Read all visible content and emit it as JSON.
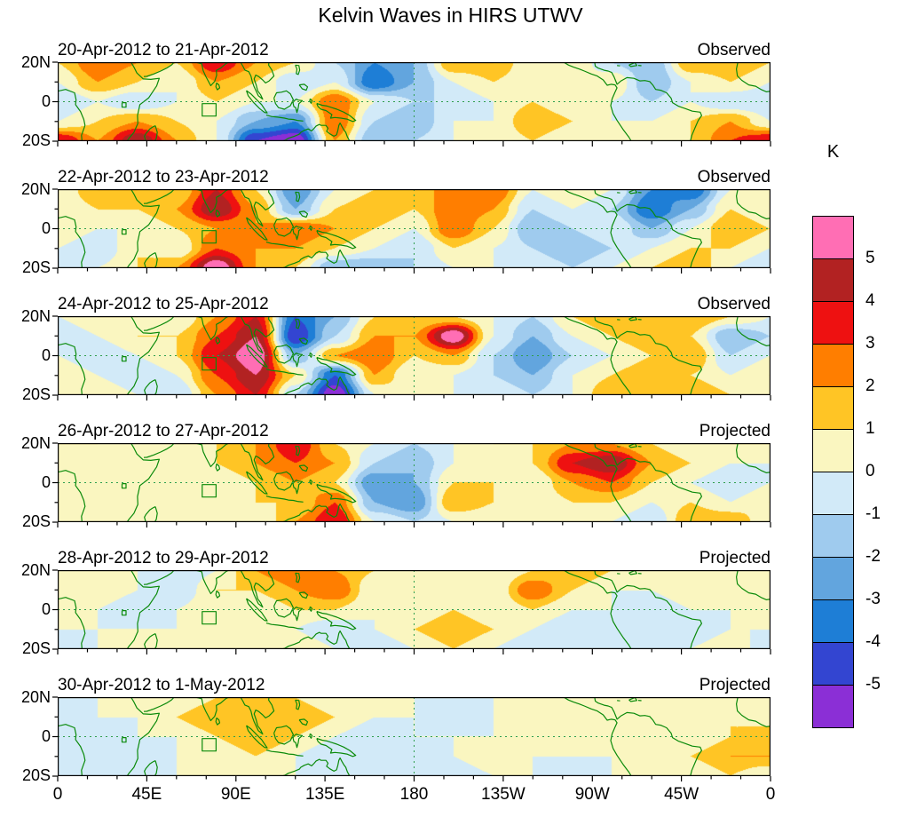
{
  "title": "Kelvin Waves in HIRS UTWV",
  "colorbar": {
    "unit_label": "K",
    "tick_labels": [
      "5",
      "4",
      "3",
      "2",
      "1",
      "0",
      "-1",
      "-2",
      "-3",
      "-4",
      "-5"
    ],
    "colors_low_to_high": [
      "#8B2FD6",
      "#3345D1",
      "#1E7ED6",
      "#62A5DE",
      "#9FCBEE",
      "#D2EAF8",
      "#FAF6C0",
      "#FFC525",
      "#FF7E00",
      "#EE1111",
      "#B22222",
      "#FF6EB4"
    ]
  },
  "axes": {
    "x_tick_labels": [
      "0",
      "45E",
      "90E",
      "135E",
      "180",
      "135W",
      "90W",
      "45W",
      "0"
    ],
    "x_tick_lons": [
      0,
      45,
      90,
      135,
      180,
      225,
      270,
      315,
      360
    ],
    "y_tick_labels": [
      "20N",
      "0",
      "20S"
    ]
  },
  "map_style": {
    "coastline_color": "#0a8a0a",
    "gridline_color": "#2f9e4e"
  },
  "chart_data": {
    "type": "heatmap",
    "title": "Kelvin Waves in HIRS UTWV",
    "unit": "K",
    "levels": [
      -5,
      -4,
      -3,
      -2,
      -1,
      0,
      1,
      2,
      3,
      4,
      5
    ],
    "lon_grid": [
      0,
      20,
      40,
      60,
      80,
      100,
      120,
      140,
      160,
      180,
      200,
      220,
      240,
      260,
      280,
      300,
      320,
      340,
      360
    ],
    "lat_grid": [
      20,
      10,
      0,
      -10,
      -20
    ],
    "panels": [
      {
        "label": "20-Apr-2012 to 21-Apr-2012",
        "status": "Observed",
        "values": [
          [
            1,
            3,
            2,
            1,
            4,
            2,
            1,
            -1,
            -3,
            -2,
            2,
            2,
            0,
            1,
            -1,
            -2,
            2,
            2,
            1
          ],
          [
            0,
            2,
            1,
            0,
            2,
            1,
            -1,
            0,
            -4,
            -2,
            0,
            1,
            0,
            0,
            1,
            -2,
            0,
            1,
            0
          ],
          [
            -1,
            0,
            -1,
            0,
            1,
            0,
            0,
            3,
            0,
            -1,
            -1,
            0,
            1,
            0,
            0,
            -1,
            0,
            -1,
            -1
          ],
          [
            0,
            1,
            2,
            1,
            0,
            -2,
            -3,
            3,
            -1,
            -2,
            0,
            0,
            2,
            1,
            0,
            0,
            1,
            2,
            0
          ],
          [
            4,
            2,
            5,
            2,
            0,
            -5,
            -6,
            2,
            -2,
            -1,
            0,
            0,
            1,
            0,
            0,
            0,
            1,
            3,
            4
          ]
        ]
      },
      {
        "label": "22-Apr-2012 to 23-Apr-2012",
        "status": "Observed",
        "values": [
          [
            0,
            2,
            2,
            1,
            4,
            1,
            -3,
            0,
            1,
            2,
            2,
            3,
            0,
            1,
            0,
            -3,
            -4,
            0,
            0
          ],
          [
            0,
            1,
            1,
            2,
            5,
            2,
            -2,
            1,
            2,
            1,
            3,
            2,
            -1,
            0,
            -1,
            -4,
            -2,
            1,
            0
          ],
          [
            1,
            0,
            0,
            1,
            2,
            2,
            3,
            2,
            1,
            0,
            3,
            1,
            -2,
            -1,
            0,
            -2,
            0,
            2,
            1
          ],
          [
            0,
            -1,
            1,
            0,
            3,
            2,
            2,
            1,
            0,
            -1,
            1,
            0,
            -1,
            -2,
            -1,
            0,
            1,
            1,
            0
          ],
          [
            -1,
            0,
            1,
            2,
            6,
            2,
            1,
            -2,
            -2,
            -1,
            0,
            0,
            0,
            -1,
            0,
            1,
            2,
            0,
            -1
          ]
        ]
      },
      {
        "label": "24-Apr-2012 to 25-Apr-2012",
        "status": "Observed",
        "values": [
          [
            0,
            1,
            1,
            0,
            2,
            4,
            -4,
            -2,
            1,
            1,
            1,
            0,
            -1,
            1,
            2,
            1,
            2,
            1,
            0
          ],
          [
            -1,
            0,
            1,
            1,
            3,
            5,
            -5,
            -1,
            2,
            2,
            6,
            0,
            -2,
            0,
            1,
            2,
            1,
            -2,
            -1
          ],
          [
            0,
            -1,
            0,
            1,
            4,
            6,
            -2,
            2,
            3,
            1,
            2,
            -1,
            -3,
            -1,
            0,
            1,
            2,
            -1,
            0
          ],
          [
            1,
            0,
            -1,
            0,
            3,
            5,
            1,
            -4,
            2,
            0,
            0,
            -1,
            -2,
            0,
            1,
            2,
            1,
            0,
            1
          ],
          [
            0,
            1,
            0,
            -1,
            2,
            4,
            -1,
            -6,
            0,
            1,
            0,
            0,
            -1,
            0,
            2,
            1,
            2,
            1,
            0
          ]
        ]
      },
      {
        "label": "26-Apr-2012 to 27-Apr-2012",
        "status": "Projected",
        "values": [
          [
            1,
            1,
            0,
            1,
            1,
            2,
            4,
            1,
            0,
            -1,
            0,
            1,
            1,
            2,
            2,
            1,
            0,
            1,
            1
          ],
          [
            0,
            0,
            1,
            0,
            1,
            2,
            3,
            2,
            -1,
            -2,
            0,
            0,
            1,
            4,
            5,
            2,
            1,
            0,
            0
          ],
          [
            0,
            1,
            0,
            0,
            0,
            1,
            2,
            1,
            -3,
            -2,
            1,
            1,
            0,
            2,
            3,
            1,
            0,
            -1,
            0
          ],
          [
            1,
            0,
            0,
            1,
            0,
            1,
            1,
            3,
            -2,
            -3,
            2,
            1,
            0,
            1,
            1,
            0,
            1,
            0,
            1
          ],
          [
            0,
            0,
            1,
            0,
            1,
            0,
            2,
            4,
            0,
            -1,
            0,
            0,
            1,
            0,
            0,
            -1,
            2,
            2,
            0
          ]
        ]
      },
      {
        "label": "28-Apr-2012 to 29-Apr-2012",
        "status": "Projected",
        "values": [
          [
            0,
            0,
            0,
            -1,
            0,
            2,
            3,
            2,
            1,
            0,
            1,
            0,
            1,
            2,
            1,
            0,
            0,
            1,
            0
          ],
          [
            0,
            1,
            0,
            -1,
            1,
            1,
            2,
            3,
            0,
            1,
            0,
            0,
            3,
            1,
            0,
            0,
            1,
            0,
            0
          ],
          [
            0,
            0,
            -1,
            0,
            1,
            0,
            1,
            1,
            0,
            0,
            1,
            0,
            1,
            0,
            0,
            -1,
            0,
            0,
            0
          ],
          [
            0,
            0,
            0,
            0,
            0,
            1,
            0,
            -1,
            0,
            1,
            2,
            1,
            0,
            -1,
            -1,
            0,
            -1,
            0,
            0
          ],
          [
            -1,
            0,
            0,
            1,
            0,
            0,
            1,
            0,
            -1,
            0,
            1,
            0,
            -1,
            0,
            0,
            -1,
            0,
            1,
            -1
          ]
        ]
      },
      {
        "label": "30-Apr-2012 to 1-May-2012",
        "status": "Projected",
        "values": [
          [
            0,
            0,
            0,
            0,
            1,
            1,
            1,
            0,
            0,
            0,
            0,
            0,
            0,
            0,
            1,
            0,
            0,
            0,
            0
          ],
          [
            -1,
            0,
            0,
            1,
            2,
            1,
            2,
            1,
            0,
            0,
            -1,
            0,
            0,
            1,
            0,
            0,
            0,
            1,
            0
          ],
          [
            0,
            -1,
            0,
            0,
            1,
            2,
            1,
            0,
            -1,
            0,
            0,
            0,
            0,
            0,
            0,
            1,
            0,
            1,
            2
          ],
          [
            -1,
            0,
            -1,
            0,
            0,
            1,
            0,
            -1,
            -1,
            -1,
            0,
            1,
            0,
            0,
            0,
            0,
            1,
            2,
            2
          ],
          [
            0,
            -1,
            0,
            0,
            1,
            0,
            0,
            0,
            0,
            0,
            -1,
            0,
            0,
            -1,
            0,
            0,
            0,
            1,
            0
          ]
        ]
      }
    ]
  }
}
